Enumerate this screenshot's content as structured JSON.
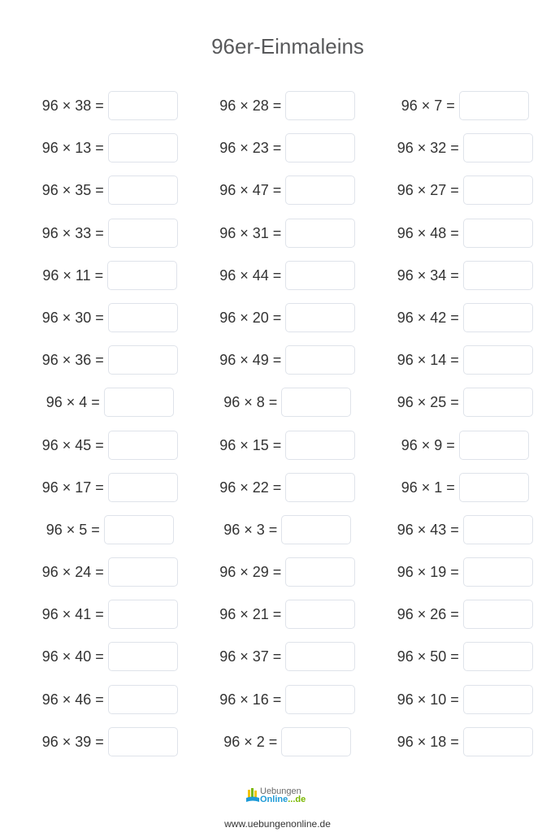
{
  "title": "96er-Einmaleins",
  "multiplicand": 96,
  "columns": [
    [
      38,
      13,
      35,
      33,
      11,
      30,
      36,
      4,
      45,
      17,
      5,
      24,
      41,
      40,
      46,
      39
    ],
    [
      28,
      23,
      47,
      31,
      44,
      20,
      49,
      8,
      15,
      22,
      3,
      29,
      21,
      37,
      16,
      2
    ],
    [
      7,
      32,
      27,
      48,
      34,
      42,
      14,
      25,
      9,
      1,
      43,
      19,
      26,
      50,
      10,
      18
    ]
  ],
  "footer": {
    "logo_line1": "Uebungen",
    "logo_line2": "Online",
    "logo_suffix": "...de",
    "url": "www.uebungenonline.de"
  },
  "colors": {
    "title": "#58595b",
    "box_border": "#dfe3ea",
    "logo_blue": "#1e9bd7",
    "logo_green": "#7ab800"
  }
}
